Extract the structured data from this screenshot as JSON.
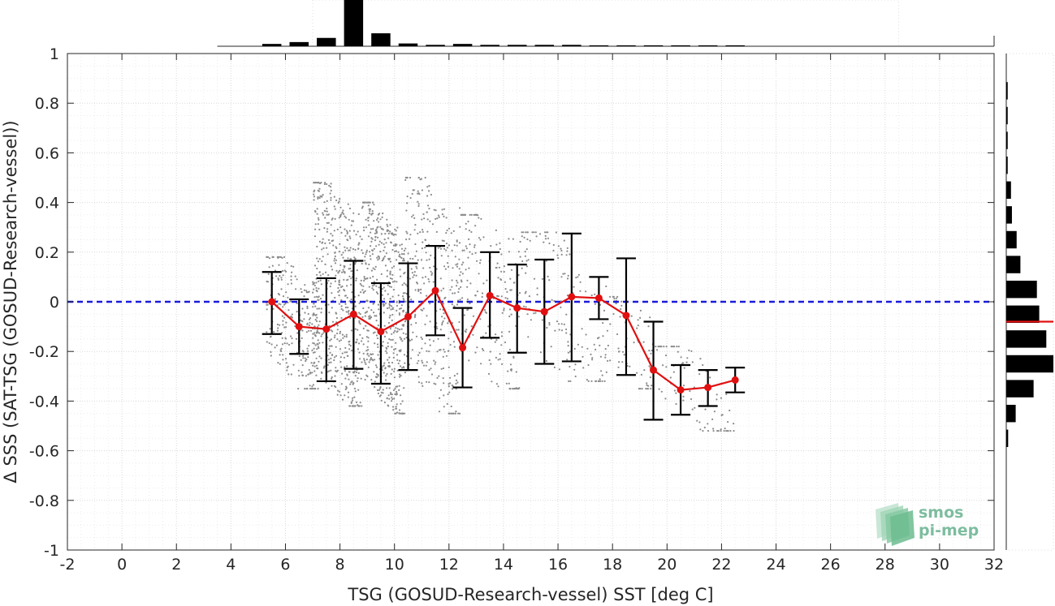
{
  "chart_data": {
    "type": "scatter",
    "xlabel": "TSG (GOSUD-Research-vessel) SST [deg C]",
    "ylabel": "Δ SSS (SAT-TSG (GOSUD-Research-vessel))",
    "xlim": [
      -2,
      32
    ],
    "ylim": [
      -1,
      1
    ],
    "x_ticks": [
      "-2",
      "0",
      "2",
      "4",
      "6",
      "8",
      "10",
      "12",
      "14",
      "16",
      "18",
      "20",
      "22",
      "24",
      "26",
      "28",
      "30",
      "32"
    ],
    "y_ticks": [
      "-1",
      "-0.8",
      "-0.6",
      "-0.4",
      "-0.2",
      "0",
      "0.2",
      "0.4",
      "0.6",
      "0.8",
      "1"
    ],
    "grid": true,
    "reference_line": {
      "y": 0,
      "style": "dashed",
      "color": "#1a1adb"
    },
    "binned_series": {
      "color": "#e01010",
      "x": [
        5.5,
        6.5,
        7.5,
        8.5,
        9.5,
        10.5,
        11.5,
        12.5,
        13.5,
        14.5,
        15.5,
        16.5,
        17.5,
        18.5,
        19.5,
        20.5,
        21.5,
        22.5
      ],
      "y": [
        0.0,
        -0.1,
        -0.11,
        -0.05,
        -0.12,
        -0.06,
        0.045,
        -0.185,
        0.025,
        -0.025,
        -0.04,
        0.02,
        0.015,
        -0.055,
        -0.275,
        -0.355,
        -0.345,
        -0.315
      ],
      "err_low": [
        -0.13,
        -0.21,
        -0.32,
        -0.27,
        -0.33,
        -0.275,
        -0.135,
        -0.345,
        -0.145,
        -0.205,
        -0.25,
        -0.24,
        -0.07,
        -0.295,
        -0.475,
        -0.455,
        -0.42,
        -0.365
      ],
      "err_high": [
        0.12,
        0.01,
        0.095,
        0.165,
        0.075,
        0.155,
        0.225,
        -0.025,
        0.2,
        0.15,
        0.17,
        0.275,
        0.1,
        0.175,
        -0.08,
        -0.255,
        -0.275,
        -0.265
      ]
    },
    "scatter_color": "#8c8c8c",
    "scatter_clusters": [
      {
        "x": [
          5.3,
          7.2
        ],
        "y": [
          -0.35,
          0.18
        ],
        "n": 250
      },
      {
        "x": [
          7.0,
          8.8
        ],
        "y": [
          -0.42,
          0.48
        ],
        "n": 520
      },
      {
        "x": [
          8.8,
          10.4
        ],
        "y": [
          -0.45,
          0.4
        ],
        "n": 520
      },
      {
        "x": [
          10.4,
          12.4
        ],
        "y": [
          -0.45,
          0.5
        ],
        "n": 330
      },
      {
        "x": [
          12.4,
          14.6
        ],
        "y": [
          -0.35,
          0.35
        ],
        "n": 200
      },
      {
        "x": [
          14.6,
          17.8
        ],
        "y": [
          -0.32,
          0.28
        ],
        "n": 170
      },
      {
        "x": [
          17.8,
          19.5
        ],
        "y": [
          -0.35,
          0.02
        ],
        "n": 70
      },
      {
        "x": [
          19.5,
          22.5
        ],
        "y": [
          -0.52,
          -0.18
        ],
        "n": 90
      }
    ],
    "top_histogram": {
      "bin_width": 1,
      "bin_centers": [
        5.5,
        6.5,
        7.5,
        8.5,
        9.5,
        10.5,
        11.5,
        12.5,
        13.5,
        14.5,
        15.5,
        16.5,
        17.5,
        18.5,
        19.5,
        20.5,
        21.5,
        22.5
      ],
      "relative_counts": [
        0.05,
        0.09,
        0.18,
        1.0,
        0.28,
        0.06,
        0.03,
        0.05,
        0.03,
        0.03,
        0.03,
        0.03,
        0.02,
        0.02,
        0.02,
        0.02,
        0.02,
        0.02
      ]
    },
    "right_histogram": {
      "bin_width": 0.1,
      "bin_centers": [
        0.85,
        0.75,
        0.65,
        0.55,
        0.45,
        0.35,
        0.25,
        0.15,
        0.05,
        -0.05,
        -0.15,
        -0.25,
        -0.35,
        -0.45,
        -0.55
      ],
      "relative_counts": [
        0.03,
        0.03,
        0.03,
        0.03,
        0.1,
        0.12,
        0.22,
        0.3,
        0.65,
        0.7,
        0.85,
        1.0,
        0.58,
        0.2,
        0.04
      ],
      "median_line": {
        "y": -0.08,
        "color": "#e01010"
      }
    }
  },
  "logo": {
    "line1": "smos",
    "line2": "pi-mep"
  }
}
